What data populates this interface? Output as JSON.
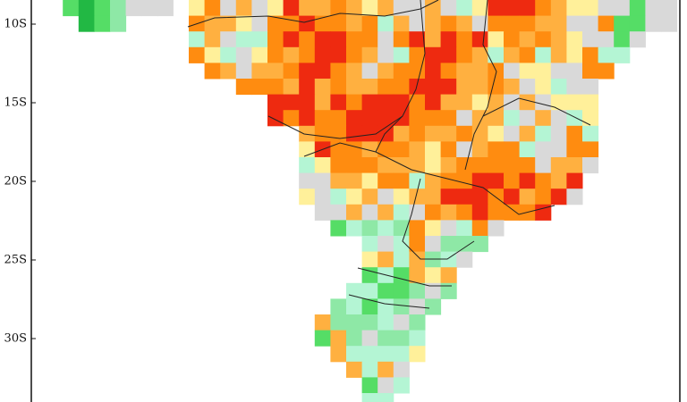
{
  "map": {
    "lat_labels": [
      "10S",
      "15S",
      "20S",
      "25S",
      "30S"
    ]
  }
}
